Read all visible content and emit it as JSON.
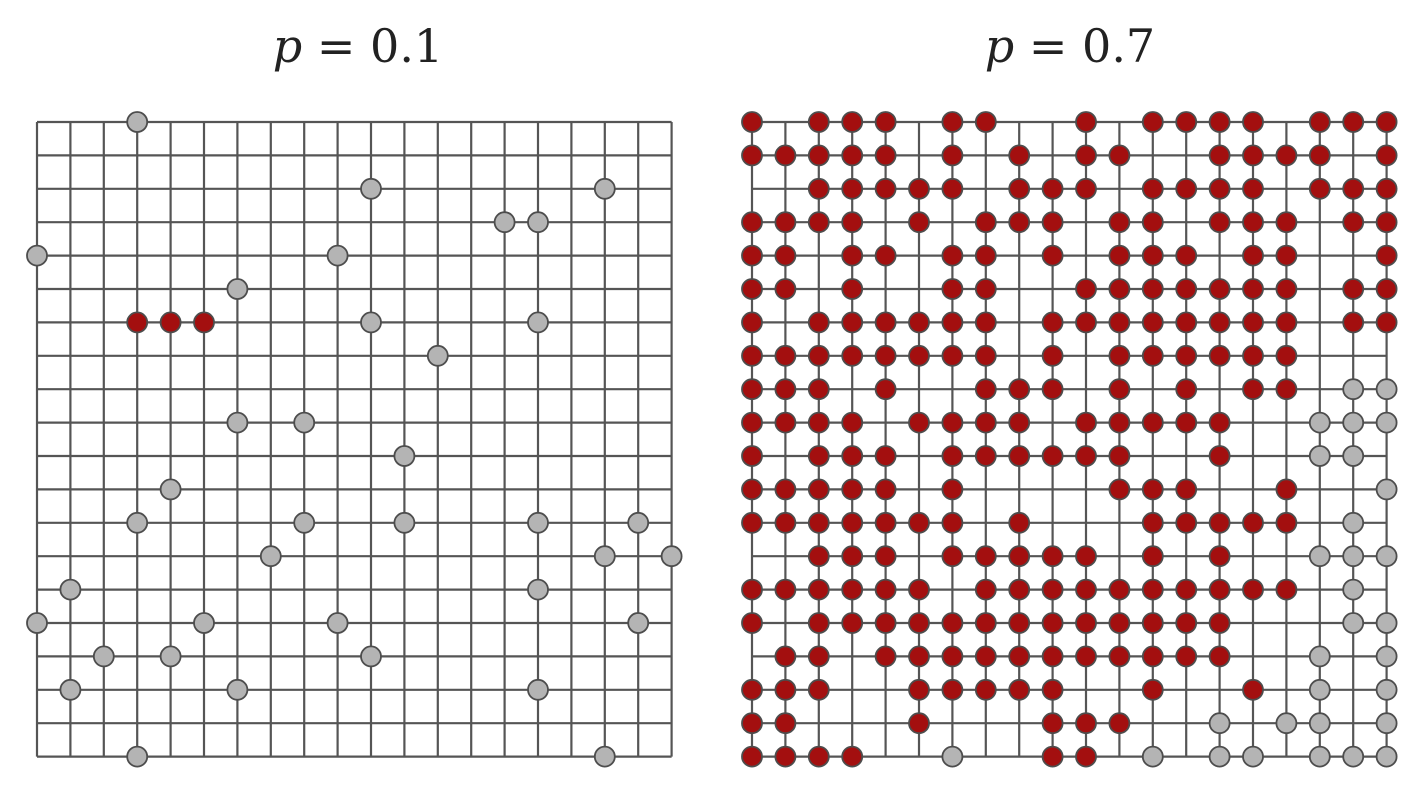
{
  "colors": {
    "grid": "#555555",
    "occupied_cluster": "#a30f0f",
    "occupied_other": "#b4b4b4",
    "node_outline": "#4d4d4d",
    "background": "#ffffff"
  },
  "panels": [
    {
      "id": "left",
      "title_var": "p",
      "title_eq": " = ",
      "title_value": "0.1",
      "grid_size": 20,
      "occupied_gray": [
        [
          0,
          3
        ],
        [
          2,
          10
        ],
        [
          2,
          17
        ],
        [
          3,
          14
        ],
        [
          3,
          15
        ],
        [
          4,
          0
        ],
        [
          4,
          9
        ],
        [
          5,
          6
        ],
        [
          6,
          10
        ],
        [
          6,
          15
        ],
        [
          7,
          12
        ],
        [
          9,
          6
        ],
        [
          9,
          8
        ],
        [
          10,
          11
        ],
        [
          11,
          4
        ],
        [
          12,
          3
        ],
        [
          12,
          8
        ],
        [
          12,
          11
        ],
        [
          12,
          15
        ],
        [
          12,
          18
        ],
        [
          13,
          7
        ],
        [
          13,
          17
        ],
        [
          13,
          19
        ],
        [
          14,
          1
        ],
        [
          14,
          15
        ],
        [
          15,
          0
        ],
        [
          15,
          5
        ],
        [
          15,
          9
        ],
        [
          15,
          18
        ],
        [
          16,
          2
        ],
        [
          16,
          4
        ],
        [
          16,
          10
        ],
        [
          17,
          1
        ],
        [
          17,
          6
        ],
        [
          17,
          15
        ],
        [
          19,
          3
        ],
        [
          19,
          17
        ]
      ],
      "occupied_red": [
        [
          6,
          3
        ],
        [
          6,
          4
        ],
        [
          6,
          5
        ]
      ]
    },
    {
      "id": "right",
      "title_var": "p",
      "title_eq": " = ",
      "title_value": "0.7",
      "grid_size": 20,
      "occupied_red": [
        [
          0,
          0
        ],
        [
          0,
          2
        ],
        [
          0,
          3
        ],
        [
          0,
          4
        ],
        [
          0,
          6
        ],
        [
          0,
          7
        ],
        [
          0,
          10
        ],
        [
          0,
          12
        ],
        [
          0,
          13
        ],
        [
          0,
          14
        ],
        [
          0,
          15
        ],
        [
          0,
          17
        ],
        [
          0,
          18
        ],
        [
          0,
          19
        ],
        [
          1,
          0
        ],
        [
          1,
          1
        ],
        [
          1,
          2
        ],
        [
          1,
          3
        ],
        [
          1,
          4
        ],
        [
          1,
          6
        ],
        [
          1,
          8
        ],
        [
          1,
          10
        ],
        [
          1,
          11
        ],
        [
          1,
          14
        ],
        [
          1,
          15
        ],
        [
          1,
          16
        ],
        [
          1,
          17
        ],
        [
          1,
          19
        ],
        [
          2,
          2
        ],
        [
          2,
          3
        ],
        [
          2,
          4
        ],
        [
          2,
          5
        ],
        [
          2,
          6
        ],
        [
          2,
          8
        ],
        [
          2,
          9
        ],
        [
          2,
          10
        ],
        [
          2,
          12
        ],
        [
          2,
          13
        ],
        [
          2,
          14
        ],
        [
          2,
          15
        ],
        [
          2,
          17
        ],
        [
          2,
          18
        ],
        [
          2,
          19
        ],
        [
          3,
          0
        ],
        [
          3,
          1
        ],
        [
          3,
          2
        ],
        [
          3,
          3
        ],
        [
          3,
          5
        ],
        [
          3,
          7
        ],
        [
          3,
          8
        ],
        [
          3,
          9
        ],
        [
          3,
          11
        ],
        [
          3,
          12
        ],
        [
          3,
          14
        ],
        [
          3,
          15
        ],
        [
          3,
          16
        ],
        [
          3,
          18
        ],
        [
          3,
          19
        ],
        [
          4,
          0
        ],
        [
          4,
          1
        ],
        [
          4,
          3
        ],
        [
          4,
          4
        ],
        [
          4,
          6
        ],
        [
          4,
          7
        ],
        [
          4,
          9
        ],
        [
          4,
          11
        ],
        [
          4,
          12
        ],
        [
          4,
          13
        ],
        [
          4,
          15
        ],
        [
          4,
          16
        ],
        [
          4,
          19
        ],
        [
          5,
          0
        ],
        [
          5,
          1
        ],
        [
          5,
          3
        ],
        [
          5,
          6
        ],
        [
          5,
          7
        ],
        [
          5,
          10
        ],
        [
          5,
          11
        ],
        [
          5,
          12
        ],
        [
          5,
          13
        ],
        [
          5,
          14
        ],
        [
          5,
          15
        ],
        [
          5,
          16
        ],
        [
          5,
          18
        ],
        [
          5,
          19
        ],
        [
          6,
          0
        ],
        [
          6,
          2
        ],
        [
          6,
          3
        ],
        [
          6,
          4
        ],
        [
          6,
          5
        ],
        [
          6,
          6
        ],
        [
          6,
          7
        ],
        [
          6,
          9
        ],
        [
          6,
          10
        ],
        [
          6,
          11
        ],
        [
          6,
          12
        ],
        [
          6,
          13
        ],
        [
          6,
          14
        ],
        [
          6,
          15
        ],
        [
          6,
          16
        ],
        [
          6,
          18
        ],
        [
          6,
          19
        ],
        [
          7,
          0
        ],
        [
          7,
          1
        ],
        [
          7,
          2
        ],
        [
          7,
          3
        ],
        [
          7,
          4
        ],
        [
          7,
          5
        ],
        [
          7,
          6
        ],
        [
          7,
          7
        ],
        [
          7,
          9
        ],
        [
          7,
          11
        ],
        [
          7,
          12
        ],
        [
          7,
          13
        ],
        [
          7,
          14
        ],
        [
          7,
          15
        ],
        [
          7,
          16
        ],
        [
          8,
          0
        ],
        [
          8,
          1
        ],
        [
          8,
          2
        ],
        [
          8,
          4
        ],
        [
          8,
          7
        ],
        [
          8,
          8
        ],
        [
          8,
          9
        ],
        [
          8,
          11
        ],
        [
          8,
          13
        ],
        [
          8,
          15
        ],
        [
          8,
          16
        ],
        [
          9,
          0
        ],
        [
          9,
          1
        ],
        [
          9,
          2
        ],
        [
          9,
          3
        ],
        [
          9,
          5
        ],
        [
          9,
          6
        ],
        [
          9,
          7
        ],
        [
          9,
          8
        ],
        [
          9,
          10
        ],
        [
          9,
          11
        ],
        [
          9,
          12
        ],
        [
          9,
          13
        ],
        [
          9,
          14
        ],
        [
          10,
          0
        ],
        [
          10,
          2
        ],
        [
          10,
          3
        ],
        [
          10,
          4
        ],
        [
          10,
          6
        ],
        [
          10,
          7
        ],
        [
          10,
          8
        ],
        [
          10,
          9
        ],
        [
          10,
          10
        ],
        [
          10,
          11
        ],
        [
          10,
          14
        ],
        [
          11,
          0
        ],
        [
          11,
          1
        ],
        [
          11,
          2
        ],
        [
          11,
          3
        ],
        [
          11,
          4
        ],
        [
          11,
          6
        ],
        [
          11,
          11
        ],
        [
          11,
          12
        ],
        [
          11,
          13
        ],
        [
          11,
          16
        ],
        [
          12,
          0
        ],
        [
          12,
          1
        ],
        [
          12,
          2
        ],
        [
          12,
          3
        ],
        [
          12,
          4
        ],
        [
          12,
          5
        ],
        [
          12,
          6
        ],
        [
          12,
          8
        ],
        [
          12,
          12
        ],
        [
          12,
          13
        ],
        [
          12,
          14
        ],
        [
          12,
          15
        ],
        [
          12,
          16
        ],
        [
          13,
          2
        ],
        [
          13,
          3
        ],
        [
          13,
          4
        ],
        [
          13,
          6
        ],
        [
          13,
          7
        ],
        [
          13,
          8
        ],
        [
          13,
          9
        ],
        [
          13,
          10
        ],
        [
          13,
          12
        ],
        [
          13,
          14
        ],
        [
          14,
          0
        ],
        [
          14,
          1
        ],
        [
          14,
          2
        ],
        [
          14,
          3
        ],
        [
          14,
          4
        ],
        [
          14,
          5
        ],
        [
          14,
          7
        ],
        [
          14,
          8
        ],
        [
          14,
          9
        ],
        [
          14,
          10
        ],
        [
          14,
          11
        ],
        [
          14,
          12
        ],
        [
          14,
          13
        ],
        [
          14,
          14
        ],
        [
          14,
          15
        ],
        [
          14,
          16
        ],
        [
          15,
          0
        ],
        [
          15,
          2
        ],
        [
          15,
          3
        ],
        [
          15,
          4
        ],
        [
          15,
          5
        ],
        [
          15,
          6
        ],
        [
          15,
          7
        ],
        [
          15,
          8
        ],
        [
          15,
          9
        ],
        [
          15,
          10
        ],
        [
          15,
          11
        ],
        [
          15,
          12
        ],
        [
          15,
          13
        ],
        [
          15,
          14
        ],
        [
          16,
          1
        ],
        [
          16,
          2
        ],
        [
          16,
          4
        ],
        [
          16,
          5
        ],
        [
          16,
          6
        ],
        [
          16,
          7
        ],
        [
          16,
          8
        ],
        [
          16,
          9
        ],
        [
          16,
          10
        ],
        [
          16,
          11
        ],
        [
          16,
          12
        ],
        [
          16,
          13
        ],
        [
          16,
          14
        ],
        [
          17,
          0
        ],
        [
          17,
          1
        ],
        [
          17,
          2
        ],
        [
          17,
          5
        ],
        [
          17,
          6
        ],
        [
          17,
          7
        ],
        [
          17,
          8
        ],
        [
          17,
          9
        ],
        [
          17,
          12
        ],
        [
          17,
          15
        ],
        [
          18,
          0
        ],
        [
          18,
          1
        ],
        [
          18,
          5
        ],
        [
          18,
          9
        ],
        [
          18,
          10
        ],
        [
          18,
          11
        ],
        [
          19,
          0
        ],
        [
          19,
          1
        ],
        [
          19,
          2
        ],
        [
          19,
          3
        ],
        [
          19,
          9
        ],
        [
          19,
          10
        ]
      ],
      "occupied_gray": [
        [
          8,
          18
        ],
        [
          8,
          19
        ],
        [
          9,
          17
        ],
        [
          9,
          18
        ],
        [
          9,
          19
        ],
        [
          10,
          17
        ],
        [
          10,
          18
        ],
        [
          11,
          19
        ],
        [
          12,
          18
        ],
        [
          13,
          17
        ],
        [
          13,
          18
        ],
        [
          13,
          19
        ],
        [
          14,
          18
        ],
        [
          15,
          18
        ],
        [
          15,
          19
        ],
        [
          16,
          17
        ],
        [
          16,
          19
        ],
        [
          17,
          17
        ],
        [
          17,
          19
        ],
        [
          18,
          14
        ],
        [
          18,
          16
        ],
        [
          18,
          17
        ],
        [
          18,
          19
        ],
        [
          19,
          6
        ],
        [
          19,
          12
        ],
        [
          19,
          14
        ],
        [
          19,
          15
        ],
        [
          19,
          17
        ],
        [
          19,
          18
        ],
        [
          19,
          19
        ]
      ]
    }
  ]
}
